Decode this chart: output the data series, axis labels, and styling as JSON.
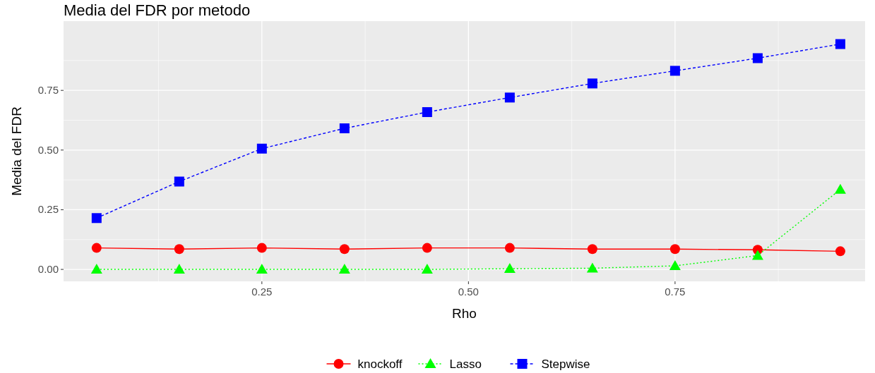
{
  "chart_data": {
    "type": "line",
    "title": "Media del FDR por metodo",
    "xlabel": "Rho",
    "ylabel": "Media del FDR",
    "x": [
      0.05,
      0.15,
      0.25,
      0.35,
      0.45,
      0.55,
      0.65,
      0.75,
      0.85,
      0.95
    ],
    "series": [
      {
        "name": "knockoff",
        "color": "#ff0000",
        "marker": "circle",
        "line_style": "solid",
        "values": [
          0.09,
          0.085,
          0.09,
          0.085,
          0.09,
          0.09,
          0.085,
          0.085,
          0.082,
          0.076
        ]
      },
      {
        "name": "Lasso",
        "color": "#00ff00",
        "marker": "triangle",
        "line_style": "dotted",
        "values": [
          0,
          0,
          0,
          0,
          0,
          0.003,
          0.005,
          0.015,
          0.058,
          0.335
        ]
      },
      {
        "name": "Stepwise",
        "color": "#0000ff",
        "marker": "square",
        "line_style": "dashed",
        "values": [
          0.215,
          0.368,
          0.506,
          0.591,
          0.659,
          0.72,
          0.779,
          0.832,
          0.885,
          0.944
        ]
      }
    ],
    "xlim": [
      0.01,
      0.98
    ],
    "ylim": [
      -0.05,
      1.04
    ],
    "xticks": [
      {
        "value": 0.25,
        "label": "0.25"
      },
      {
        "value": 0.5,
        "label": "0.50"
      },
      {
        "value": 0.75,
        "label": "0.75"
      }
    ],
    "yticks": [
      {
        "value": 0,
        "label": "0.00"
      },
      {
        "value": 0.25,
        "label": "0.25"
      },
      {
        "value": 0.5,
        "label": "0.50"
      },
      {
        "value": 0.75,
        "label": "0.75"
      }
    ],
    "grid": true,
    "legend": "bottom"
  }
}
